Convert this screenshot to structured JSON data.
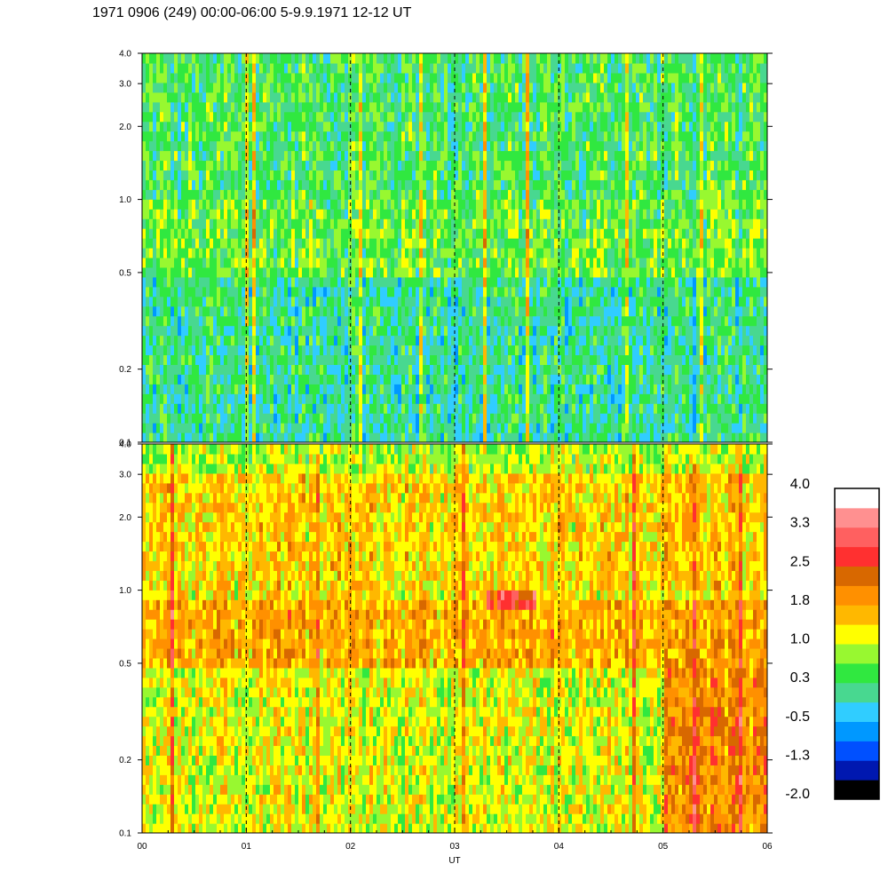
{
  "header": {
    "title": "1971 0906 (249) 00:00-06:00 5-9.9.1971  12-12 UT"
  },
  "chart_data": {
    "type": "heatmap",
    "xlabel": "UT",
    "x_ticks": [
      "00",
      "01",
      "02",
      "03",
      "04",
      "05",
      "06"
    ],
    "xlim": [
      0,
      6
    ],
    "y_scale": "log",
    "ylim": [
      0.1,
      4.0
    ],
    "y_ticks": [
      {
        "value": 0.1,
        "label": "0.1"
      },
      {
        "value": 0.2,
        "label": "0.2"
      },
      {
        "value": 0.5,
        "label": "0.5"
      },
      {
        "value": 1.0,
        "label": "1.0"
      },
      {
        "value": 2.0,
        "label": "2.0"
      },
      {
        "value": 3.0,
        "label": "3.0"
      },
      {
        "value": 4.0,
        "label": "4.0"
      }
    ],
    "dashed_gridlines_x": [
      1,
      2,
      3,
      4,
      5
    ],
    "panels": [
      {
        "id": "top",
        "base_level": 0.3,
        "variability": 0.55,
        "bands": [
          {
            "y_from": 0.1,
            "y_to": 0.18,
            "t_from": 0,
            "t_to": 2,
            "level": -0.4
          },
          {
            "y_from": 0.1,
            "y_to": 0.5,
            "t_from": 0,
            "t_to": 6,
            "level": 0.1
          },
          {
            "y_from": 0.5,
            "y_to": 1.0,
            "t_from": 0,
            "t_to": 6,
            "level": 0.55
          },
          {
            "y_from": 1.0,
            "y_to": 4.0,
            "t_from": 0,
            "t_to": 6,
            "level": 0.35
          }
        ]
      },
      {
        "id": "bottom",
        "base_level": 1.3,
        "variability": 0.55,
        "bands": [
          {
            "y_from": 0.1,
            "y_to": 0.5,
            "t_from": 0,
            "t_to": 6,
            "level": 1.1
          },
          {
            "y_from": 0.5,
            "y_to": 0.9,
            "t_from": 0,
            "t_to": 6,
            "level": 1.7
          },
          {
            "y_from": 0.8,
            "y_to": 1.2,
            "t_from": 3.3,
            "t_to": 3.8,
            "level": 2.7
          },
          {
            "y_from": 0.1,
            "y_to": 0.5,
            "t_from": 5,
            "t_to": 6,
            "level": 1.9
          },
          {
            "y_from": 1.0,
            "y_to": 4.0,
            "t_from": 0,
            "t_to": 6,
            "level": 1.4
          },
          {
            "y_from": 3.0,
            "y_to": 4.0,
            "t_from": 0,
            "t_to": 6,
            "level": 0.9
          }
        ]
      }
    ],
    "colorbar": {
      "labels": [
        "4.0",
        "3.3",
        "2.5",
        "1.8",
        "1.0",
        "0.3",
        "-0.5",
        "-1.3",
        "-2.0"
      ],
      "min": -2.0,
      "max": 4.0,
      "colors": [
        "#000000",
        "#0018b0",
        "#0050ff",
        "#0098ff",
        "#30cdff",
        "#48d890",
        "#30e840",
        "#98f830",
        "#ffff00",
        "#ffb800",
        "#ff9000",
        "#d86800",
        "#ff3030",
        "#ff6060",
        "#ff9090",
        "#ffffff"
      ]
    }
  }
}
